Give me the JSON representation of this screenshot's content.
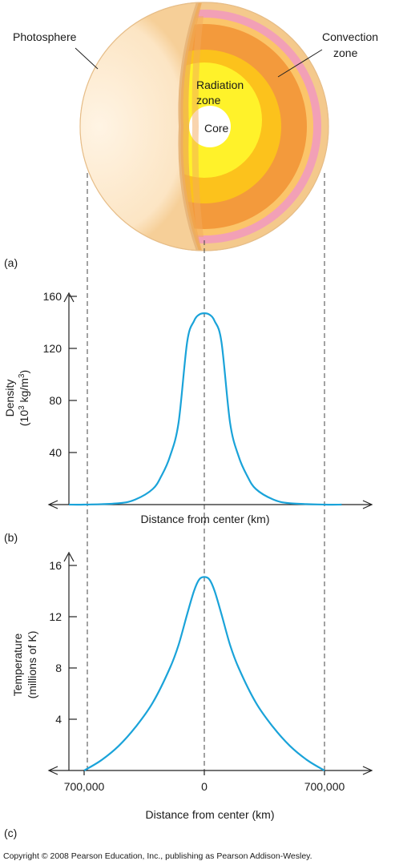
{
  "panel_a": {
    "tag": "(a)",
    "labels": {
      "photosphere": "Photosphere",
      "convection_1": "Convection",
      "convection_2": "zone",
      "radiation_1": "Radiation",
      "radiation_2": "zone",
      "core": "Core"
    },
    "colors": {
      "photosphere": "#fbe3bf",
      "pink_shell": "#f2a0b6",
      "light_orange": "#fbc56a",
      "convection": "#f39a3c",
      "radiation_outer": "#fcc21c",
      "radiation_inner": "#fff22a",
      "core": "#ffffff"
    }
  },
  "panel_b": {
    "tag": "(b)",
    "ylabel_1": "Density",
    "ylabel_2": "(10",
    "ylabel_sup1": "3",
    "ylabel_3": " kg/m",
    "ylabel_sup2": "3",
    "ylabel_4": ")",
    "xlabel": "Distance from center (km)"
  },
  "panel_c": {
    "tag": "(c)",
    "ylabel_1": "Temperature",
    "ylabel_2": "(millions of K)",
    "xlabel": "Distance from center (km)"
  },
  "copyright": "Copyright © 2008 Pearson Education, Inc., publishing as Pearson Addison-Wesley.",
  "chart_data": [
    {
      "type": "line",
      "yticks": [
        "40",
        "80",
        "120",
        "160"
      ],
      "ylim": [
        0,
        170
      ],
      "xlim": [
        -700000,
        700000
      ],
      "series": [
        {
          "x": [
            -800000,
            -700000,
            -500000,
            -400000,
            -300000,
            -250000,
            -200000,
            -150000,
            -100000,
            -60000,
            -30000,
            0,
            30000,
            60000,
            100000,
            150000,
            200000,
            250000,
            300000,
            400000,
            500000,
            700000,
            800000
          ],
          "values": [
            0,
            0,
            1,
            4,
            12,
            22,
            37,
            63,
            125,
            141,
            146,
            147,
            146,
            141,
            125,
            63,
            37,
            22,
            12,
            4,
            1,
            0,
            0
          ]
        }
      ]
    },
    {
      "type": "line",
      "xticks": [
        "700,000",
        "0",
        "700,000"
      ],
      "yticks": [
        "4",
        "8",
        "12",
        "16"
      ],
      "ylim": [
        0,
        17.5
      ],
      "xlim": [
        -700000,
        700000
      ],
      "series": [
        {
          "x": [
            -700000,
            -600000,
            -500000,
            -400000,
            -300000,
            -200000,
            -150000,
            -100000,
            -60000,
            -30000,
            0,
            30000,
            60000,
            100000,
            150000,
            200000,
            300000,
            400000,
            500000,
            600000,
            700000
          ],
          "values": [
            0,
            0.8,
            1.9,
            3.4,
            5.3,
            8.0,
            9.8,
            12.2,
            14.0,
            14.9,
            15.1,
            14.9,
            14.0,
            12.2,
            9.8,
            8.0,
            5.3,
            3.4,
            1.9,
            0.8,
            0
          ]
        }
      ]
    }
  ]
}
